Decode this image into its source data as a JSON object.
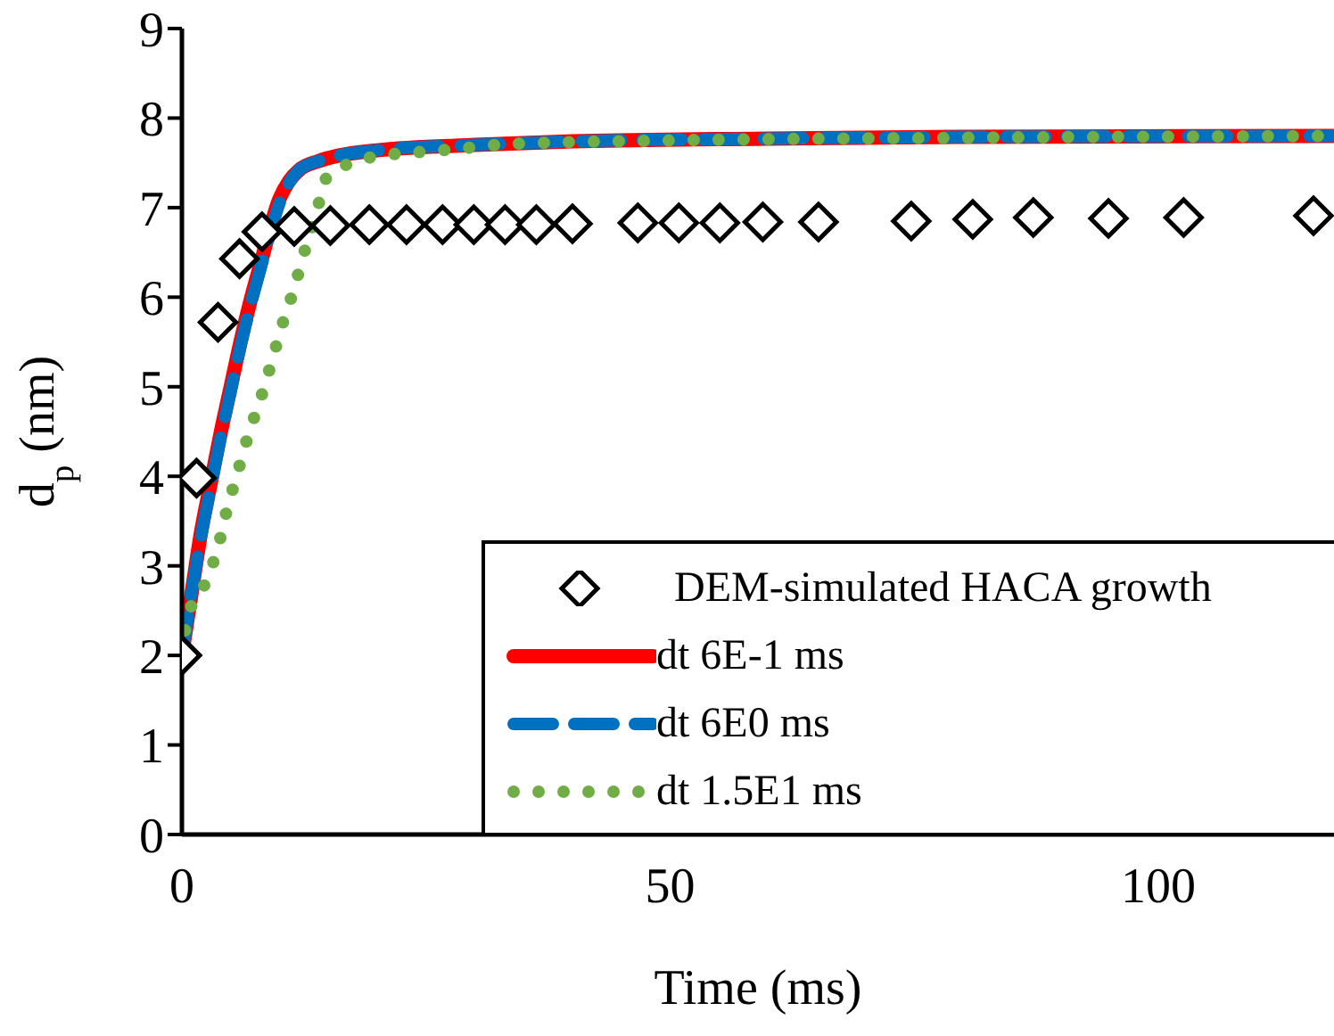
{
  "chart_data": {
    "type": "line",
    "xlabel": "Time (ms)",
    "ylabel": "d$_{p}$ (nm)",
    "xlim": [
      0,
      118
    ],
    "xticks": [
      0,
      50,
      100
    ],
    "ylim": [
      0,
      9
    ],
    "yticks": [
      0,
      1,
      2,
      3,
      4,
      5,
      6,
      7,
      8,
      9
    ],
    "grid": false,
    "legend": "bottom right",
    "series": [
      {
        "name": "DEM-simulated HACA growth",
        "type": "scatter",
        "marker": "diamond",
        "color": "#000000",
        "x": [
          0,
          1.5,
          3.7,
          5.9,
          8.2,
          11.5,
          15.2,
          19.2,
          23,
          26.7,
          29.9,
          33.1,
          36.3,
          40,
          46.7,
          50.9,
          55.1,
          59.5,
          65.2,
          74.7,
          81,
          87.2,
          94.9,
          102.6,
          115.9
        ],
        "values": [
          2.0,
          3.98,
          5.72,
          6.43,
          6.73,
          6.79,
          6.8,
          6.81,
          6.81,
          6.81,
          6.81,
          6.81,
          6.81,
          6.82,
          6.83,
          6.83,
          6.83,
          6.84,
          6.84,
          6.85,
          6.87,
          6.89,
          6.88,
          6.89,
          6.91
        ]
      },
      {
        "name": "dt 6E-1 ms",
        "type": "line",
        "line_style": "solid",
        "marker": "none",
        "color": "#ff0000",
        "x": [
          0,
          1,
          2,
          3,
          4,
          5,
          6,
          7,
          8,
          10,
          11,
          12,
          14,
          16,
          20,
          30,
          40,
          60,
          80,
          118
        ],
        "values": [
          2,
          2.7,
          3.4,
          3.95,
          4.5,
          5.0,
          5.5,
          5.95,
          6.35,
          7.1,
          7.3,
          7.42,
          7.52,
          7.58,
          7.64,
          7.7,
          7.74,
          7.77,
          7.79,
          7.8
        ]
      },
      {
        "name": "dt 6E0 ms",
        "type": "line",
        "line_style": "dashed",
        "marker": "none",
        "color": "#0070c0",
        "x": [
          0,
          1,
          2,
          3,
          4,
          5,
          6,
          7,
          8,
          9,
          10,
          11,
          12,
          14,
          16,
          20,
          30,
          40,
          60,
          80,
          118
        ],
        "values": [
          2,
          2.7,
          3.35,
          3.9,
          4.45,
          4.95,
          5.45,
          5.9,
          6.3,
          6.7,
          7.05,
          7.28,
          7.42,
          7.52,
          7.58,
          7.64,
          7.7,
          7.74,
          7.77,
          7.79,
          7.8
        ]
      },
      {
        "name": "dt 1.5E1 ms",
        "type": "line",
        "line_style": "dotted",
        "marker": "none",
        "color": "#70ad47",
        "x": [
          0,
          0.55,
          2.4,
          3.7,
          4.6,
          5.7,
          6.8,
          8.1,
          9.2,
          10.3,
          11.5,
          12.5,
          13.7,
          14.8,
          17.6,
          21.2,
          25.6,
          29.5,
          33.5,
          50,
          80,
          118
        ],
        "values": [
          2,
          2.41,
          2.81,
          3.21,
          3.62,
          4.04,
          4.46,
          4.88,
          5.28,
          5.7,
          6.1,
          6.49,
          6.91,
          7.33,
          7.51,
          7.59,
          7.63,
          7.67,
          7.71,
          7.75,
          7.78,
          7.8
        ]
      }
    ]
  }
}
